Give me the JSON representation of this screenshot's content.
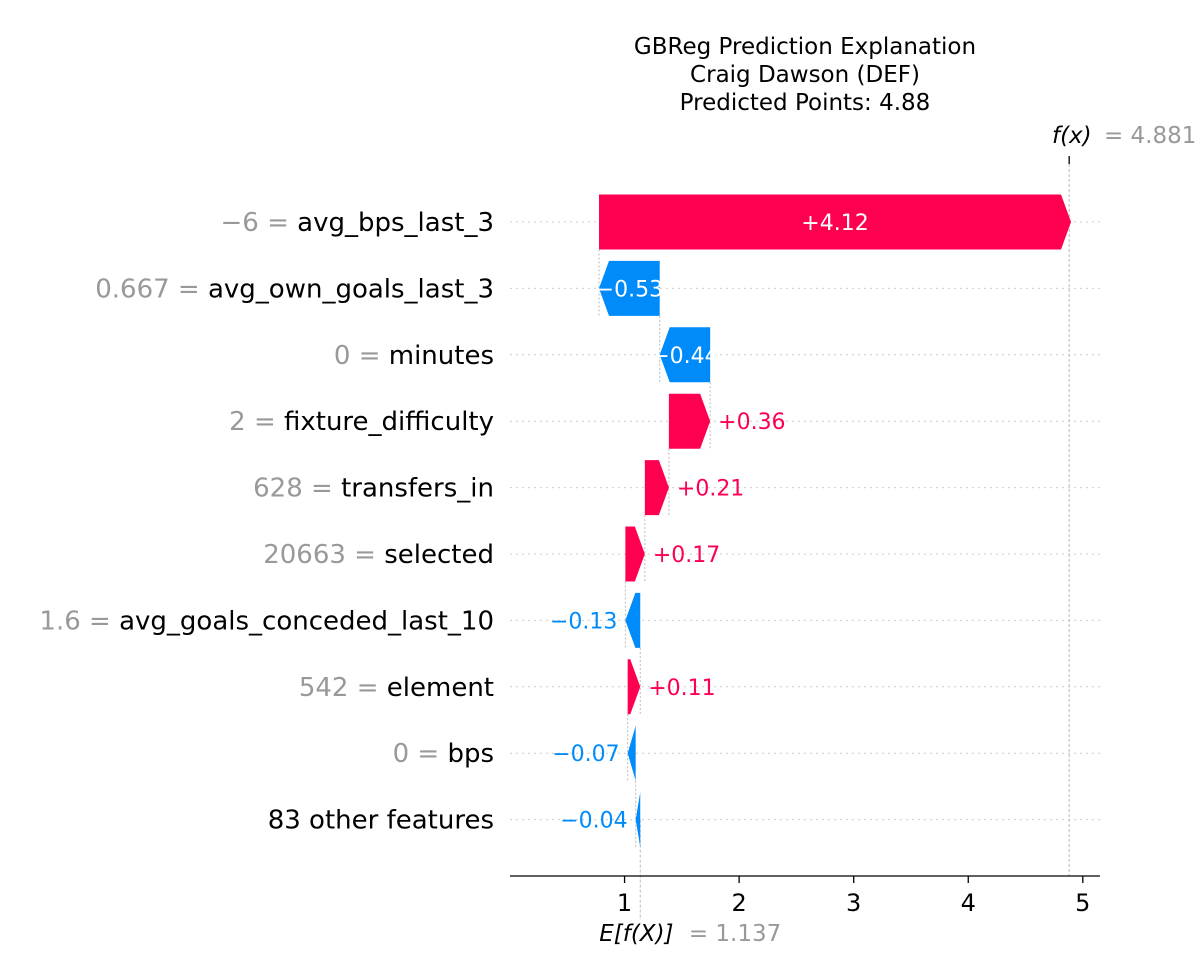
{
  "chart_data": {
    "type": "waterfall",
    "title_lines": [
      "GBReg Prediction Explanation",
      "Craig Dawson (DEF)",
      "Predicted Points: 4.88"
    ],
    "base_value": 1.137,
    "base_label": "E[f(X)]",
    "base_value_text": "= 1.137",
    "final_value": 4.881,
    "final_label": "f(x)",
    "final_value_text": "= 4.881",
    "xlim": [
      0,
      5.15
    ],
    "xticks": [
      1,
      2,
      3,
      4,
      5
    ],
    "xtick_labels": [
      "1",
      "2",
      "3",
      "4",
      "5"
    ],
    "features": [
      {
        "value_text": "−6 =",
        "name": "avg_bps_last_3",
        "contribution": 4.12,
        "label": "+4.12",
        "label_inside": true
      },
      {
        "value_text": "0.667 =",
        "name": "avg_own_goals_last_3",
        "contribution": -0.53,
        "label": "−0.53",
        "label_inside": true
      },
      {
        "value_text": "0 =",
        "name": "minutes",
        "contribution": -0.44,
        "label": "−0.44",
        "label_inside": true
      },
      {
        "value_text": "2 =",
        "name": "fixture_difficulty",
        "contribution": 0.36,
        "label": "+0.36",
        "label_inside": false
      },
      {
        "value_text": "628 =",
        "name": "transfers_in",
        "contribution": 0.21,
        "label": "+0.21",
        "label_inside": false
      },
      {
        "value_text": "20663 =",
        "name": "selected",
        "contribution": 0.17,
        "label": "+0.17",
        "label_inside": false
      },
      {
        "value_text": "1.6 =",
        "name": "avg_goals_conceded_last_10",
        "contribution": -0.13,
        "label": "−0.13",
        "label_inside": false
      },
      {
        "value_text": "542 =",
        "name": "element",
        "contribution": 0.11,
        "label": "+0.11",
        "label_inside": false
      },
      {
        "value_text": "0 =",
        "name": "bps",
        "contribution": -0.07,
        "label": "−0.07",
        "label_inside": false
      },
      {
        "value_text": "",
        "name": "83 other features",
        "contribution": -0.04,
        "label": "−0.04",
        "label_inside": false
      }
    ],
    "colors": {
      "positive": "#ff0051",
      "negative": "#008bfb",
      "value_gray": "#999999",
      "text": "#000000"
    }
  }
}
